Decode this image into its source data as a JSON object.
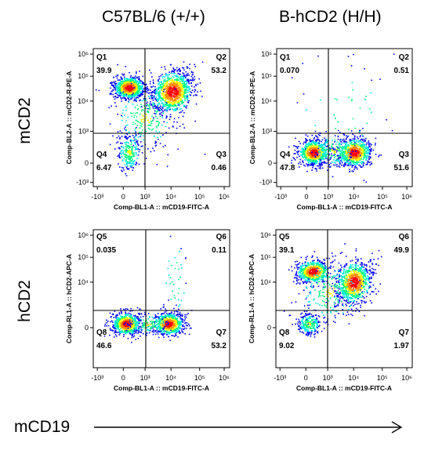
{
  "columns": [
    "C57BL/6 (+/+)",
    "B-hCD2 (H/H)"
  ],
  "rows": [
    "mCD2",
    "hCD2"
  ],
  "bottom_axis_label": "mCD19",
  "colors": {
    "density_low": "#0000ff",
    "density_mid": "#00e5e5",
    "density_midhigh": "#ffff00",
    "density_high": "#ff0000",
    "gate_line": "#000000"
  },
  "chart_data": [
    {
      "type": "scatter",
      "subtype": "flow-cytometry-density",
      "column": "C57BL/6 (+/+)",
      "row": "mCD2",
      "xlabel": "Comp-BL1-A :: mCD19-FITC-A",
      "ylabel": "Comp-BL2-A :: mCD2-R-PE-A",
      "x_ticks": [
        "-10³",
        "0",
        "10³",
        "10⁴",
        "10⁵",
        "10⁶"
      ],
      "y_ticks": [
        "-10³",
        "0",
        "10³",
        "10⁴",
        "10⁵",
        "10⁶"
      ],
      "quadrants": [
        {
          "name": "Q1",
          "value": "39.9"
        },
        {
          "name": "Q2",
          "value": "53.2"
        },
        {
          "name": "Q3",
          "value": "0.46"
        },
        {
          "name": "Q4",
          "value": "6.47"
        }
      ]
    },
    {
      "type": "scatter",
      "subtype": "flow-cytometry-density",
      "column": "B-hCD2 (H/H)",
      "row": "mCD2",
      "xlabel": "Comp-BL1-A :: mCD19-FITC-A",
      "ylabel": "Comp-BL2-A :: mCD2-R-PE-A",
      "x_ticks": [
        "-10³",
        "0",
        "10³",
        "10⁴",
        "10⁵",
        "10⁶"
      ],
      "y_ticks": [
        "-10³",
        "0",
        "10³",
        "10⁴",
        "10⁵",
        "10⁶"
      ],
      "quadrants": [
        {
          "name": "Q1",
          "value": "0.070"
        },
        {
          "name": "Q2",
          "value": "0.51"
        },
        {
          "name": "Q3",
          "value": "51.6"
        },
        {
          "name": "Q4",
          "value": "47.8"
        }
      ]
    },
    {
      "type": "scatter",
      "subtype": "flow-cytometry-density",
      "column": "C57BL/6 (+/+)",
      "row": "hCD2",
      "xlabel": "Comp-BL1-A :: mCD19-FITC-A",
      "ylabel": "Comp-RL1-A :: hCD2-APC-A",
      "x_ticks": [
        "-10³",
        "0",
        "10³",
        "10⁴",
        "10⁵",
        "10⁶"
      ],
      "y_ticks": [
        "0",
        "10⁴",
        "10⁵",
        "10⁶"
      ],
      "quadrants": [
        {
          "name": "Q5",
          "value": "0.035"
        },
        {
          "name": "Q6",
          "value": "0.11"
        },
        {
          "name": "Q7",
          "value": "53.2"
        },
        {
          "name": "Q8",
          "value": "46.6"
        }
      ]
    },
    {
      "type": "scatter",
      "subtype": "flow-cytometry-density",
      "column": "B-hCD2 (H/H)",
      "row": "hCD2",
      "xlabel": "Comp-BL1-A :: mCD19-FITC-A",
      "ylabel": "Comp-RL1-A :: hCD2-APC-A",
      "x_ticks": [
        "-10³",
        "0",
        "10³",
        "10⁴",
        "10⁵",
        "10⁶"
      ],
      "y_ticks": [
        "0",
        "10⁴",
        "10⁵",
        "10⁶"
      ],
      "quadrants": [
        {
          "name": "Q5",
          "value": "39.1"
        },
        {
          "name": "Q6",
          "value": "49.9"
        },
        {
          "name": "Q7",
          "value": "1.97"
        },
        {
          "name": "Q8",
          "value": "9.02"
        }
      ]
    }
  ]
}
